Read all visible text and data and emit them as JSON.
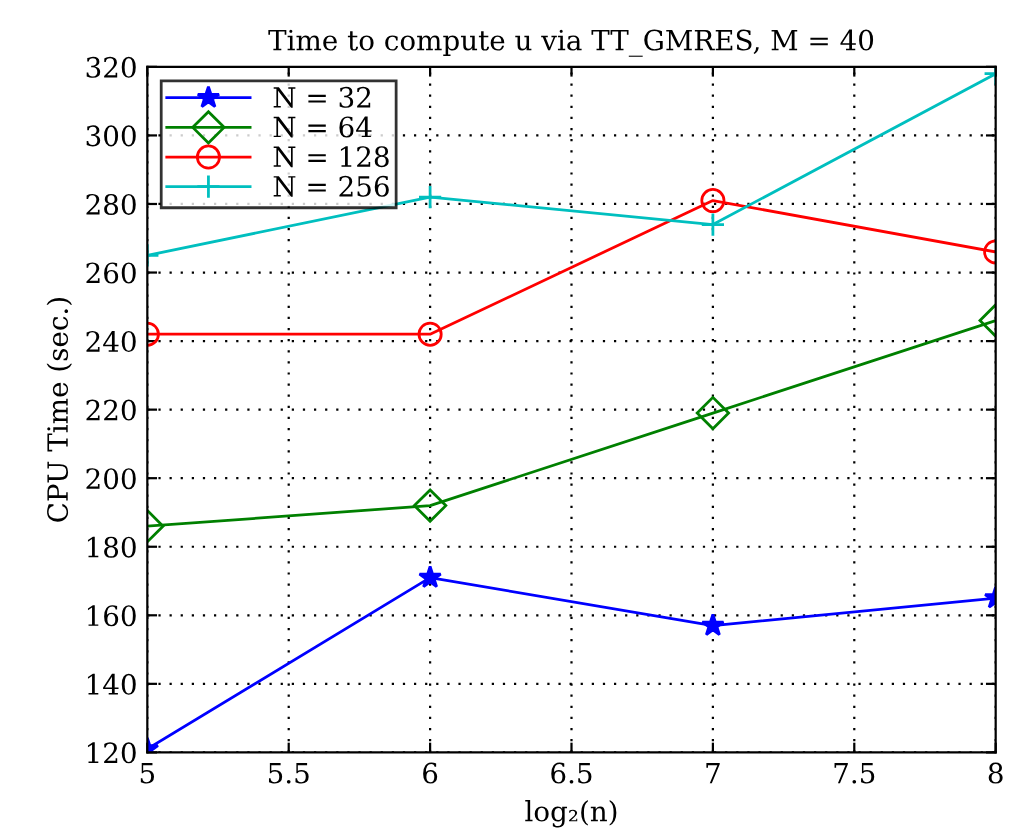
{
  "chart_data": {
    "type": "line",
    "title": "Time to compute u via TT_GMRES, M = 40",
    "xlabel": "log₂(n)",
    "ylabel": "CPU Time (sec.)",
    "x": [
      5,
      6,
      7,
      8
    ],
    "series": [
      {
        "name": "N = 32",
        "color": "#0000ff",
        "marker": "star",
        "values": [
          121,
          171,
          157,
          165
        ]
      },
      {
        "name": "N = 64",
        "color": "#008000",
        "marker": "diamond",
        "values": [
          186,
          192,
          219,
          246
        ]
      },
      {
        "name": "N = 128",
        "color": "#ff0000",
        "marker": "circle",
        "values": [
          242,
          242,
          281,
          266
        ]
      },
      {
        "name": "N = 256",
        "color": "#00bfbf",
        "marker": "cross",
        "values": [
          265,
          282,
          274,
          318
        ]
      }
    ],
    "xlim": [
      5,
      8
    ],
    "xticks": [
      5,
      5.5,
      6,
      6.5,
      7,
      7.5,
      8
    ],
    "ylim": [
      120,
      320
    ],
    "yticks": [
      120,
      140,
      160,
      180,
      200,
      220,
      240,
      260,
      280,
      300,
      320
    ],
    "grid": true,
    "line_style": "solid",
    "legend": "top left"
  }
}
